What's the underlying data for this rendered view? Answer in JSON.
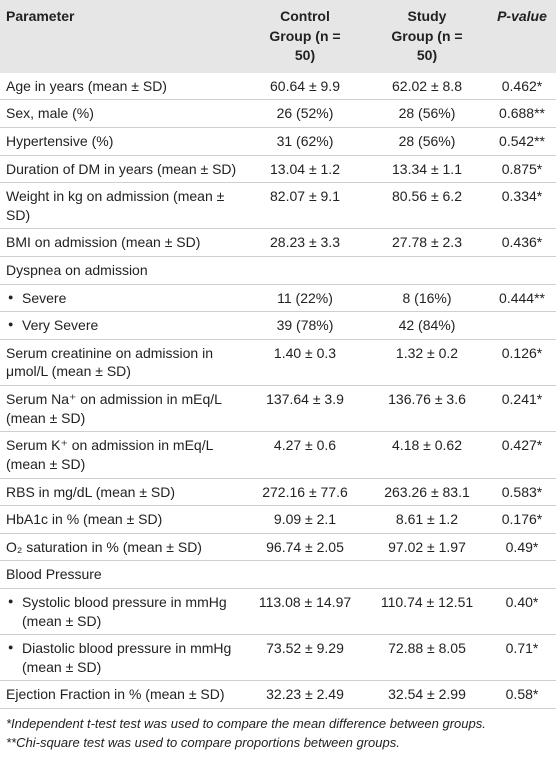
{
  "table": {
    "header": [
      "Parameter",
      "Control Group (n = 50)",
      "Study Group (n = 50)",
      "P-value"
    ],
    "rows": [
      {
        "label": "Age in years (mean ± SD)",
        "control": "60.64 ± 9.9",
        "study": "62.02 ± 8.8",
        "p": "0.462*"
      },
      {
        "label": "Sex, male (%)",
        "control": "26 (52%)",
        "study": "28 (56%)",
        "p": "0.688**"
      },
      {
        "label": "Hypertensive (%)",
        "control": "31 (62%)",
        "study": "28 (56%)",
        "p": "0.542**"
      },
      {
        "label": "Duration of DM in years (mean ± SD)",
        "control": "13.04 ± 1.2",
        "study": "13.34 ± 1.1",
        "p": "0.875*"
      },
      {
        "label": "Weight in kg on admission (mean ± SD)",
        "control": "82.07 ± 9.1",
        "study": "80.56 ± 6.2",
        "p": "0.334*"
      },
      {
        "label": "BMI on admission (mean ± SD)",
        "control": "28.23 ± 3.3",
        "study": "27.78 ± 2.3",
        "p": "0.436*"
      },
      {
        "group": "Dyspnea on admission",
        "rows": [
          {
            "label": "Severe",
            "control": "11 (22%)",
            "study": "8 (16%)",
            "p": "0.444**"
          },
          {
            "label": "Very Severe",
            "control": "39 (78%)",
            "study": "42 (84%)"
          }
        ]
      },
      {
        "label": "Serum creatinine on admission in μmol/L (mean ± SD)",
        "control": "1.40 ± 0.3",
        "study": "1.32 ± 0.2",
        "p": "0.126*"
      },
      {
        "label": "Serum Na⁺ on admission in mEq/L (mean ± SD)",
        "control": "137.64 ± 3.9",
        "study": "136.76 ± 3.6",
        "p": "0.241*"
      },
      {
        "label": "Serum K⁺ on admission in mEq/L (mean ± SD)",
        "control": "4.27 ± 0.6",
        "study": "4.18 ± 0.62",
        "p": "0.427*"
      },
      {
        "label": "RBS in mg/dL (mean ± SD)",
        "control": "272.16 ± 77.6",
        "study": "263.26 ± 83.1",
        "p": "0.583*"
      },
      {
        "label": "HbA1c in % (mean ± SD)",
        "control": "9.09 ± 2.1",
        "study": "8.61 ± 1.2",
        "p": "0.176*"
      },
      {
        "label": "O₂ saturation in % (mean ± SD)",
        "control": "96.74 ± 2.05",
        "study": "97.02 ± 1.97",
        "p": "0.49*"
      },
      {
        "group": "Blood Pressure",
        "rows": [
          {
            "label": "Systolic blood pressure in mmHg (mean ± SD)",
            "control": "113.08 ± 14.97",
            "study": "110.74 ± 12.51",
            "p": "0.40*"
          },
          {
            "label": "Diastolic blood pressure in mmHg (mean ± SD)",
            "control": "73.52 ± 9.29",
            "study": "72.88 ± 8.05",
            "p": "0.71*"
          }
        ]
      },
      {
        "label": "Ejection Fraction in % (mean ± SD)",
        "control": "32.23 ± 2.49",
        "study": "32.54 ± 2.99",
        "p": "0.58*"
      }
    ],
    "footnotes": [
      "*Independent t-test test was used to compare the mean difference between groups.",
      "**Chi-square test was used to compare proportions between groups."
    ]
  }
}
